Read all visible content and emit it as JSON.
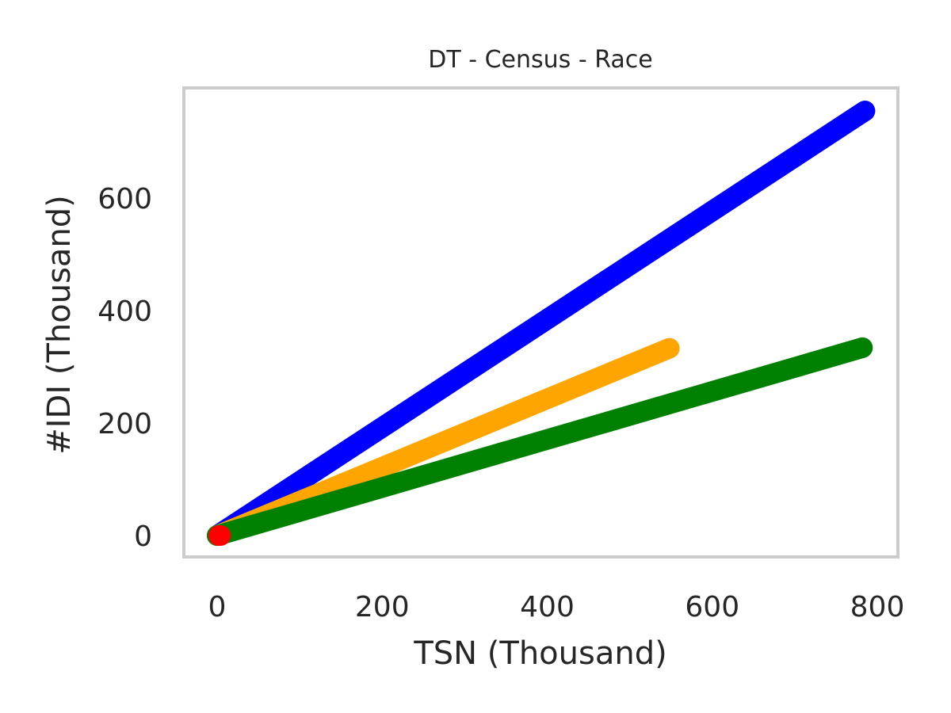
{
  "chart_data": {
    "type": "line",
    "title": "DT - Census - Race",
    "xlabel": "TSN (Thousand)",
    "ylabel": "#IDI (Thousand)",
    "xlim": [
      -60,
      1300
    ],
    "ylim": [
      -40,
      800
    ],
    "xticks": [
      0,
      200,
      400,
      600,
      800
    ],
    "yticks": [
      0,
      200,
      400,
      600
    ],
    "grid": false,
    "legend": "none",
    "series": [
      {
        "color": "#0000ff",
        "x": [
          0,
          785
        ],
        "y": [
          0,
          755
        ]
      },
      {
        "color": "#ffa500",
        "x": [
          0,
          548
        ],
        "y": [
          0,
          333
        ]
      },
      {
        "color": "#008000",
        "x": [
          0,
          782
        ],
        "y": [
          0,
          334
        ]
      },
      {
        "color": "#ff0000",
        "x": [
          2,
          4
        ],
        "y": [
          0,
          0
        ]
      }
    ]
  }
}
